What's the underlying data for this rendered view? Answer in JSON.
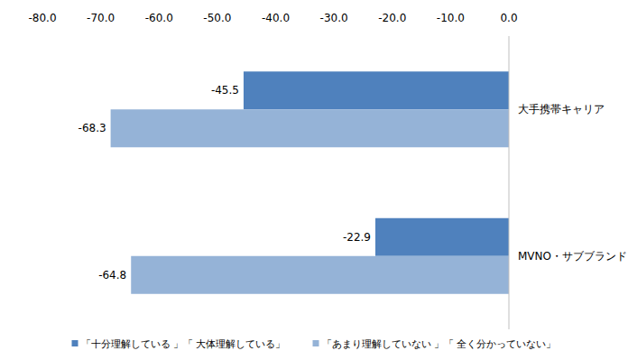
{
  "chart_data": {
    "type": "bar",
    "orientation": "horizontal",
    "categories": [
      "大手携帯キャリア",
      "MVNO・サブブランド"
    ],
    "series": [
      {
        "name": "「十分理解している 」「 大体理解している」",
        "color": "#4f81bd",
        "values": [
          -45.5,
          -22.9
        ]
      },
      {
        "name": "「あまり理解していない 」「 全く分かっていない」",
        "color": "#95b3d7",
        "values": [
          -68.3,
          -64.8
        ]
      }
    ],
    "xlim": [
      -80,
      0
    ],
    "xticks": [
      {
        "value": -80,
        "label": "-80.0"
      },
      {
        "value": -70,
        "label": "-70.0"
      },
      {
        "value": -60,
        "label": "-60.0"
      },
      {
        "value": -50,
        "label": "-50.0"
      },
      {
        "value": -40,
        "label": "-40.0"
      },
      {
        "value": -30,
        "label": "-30.0"
      },
      {
        "value": -20,
        "label": "-20.0"
      },
      {
        "value": -10,
        "label": "-10.0"
      },
      {
        "value": 0,
        "label": "0.0"
      }
    ],
    "data_labels": true,
    "grid": false,
    "legend": "bottom"
  }
}
